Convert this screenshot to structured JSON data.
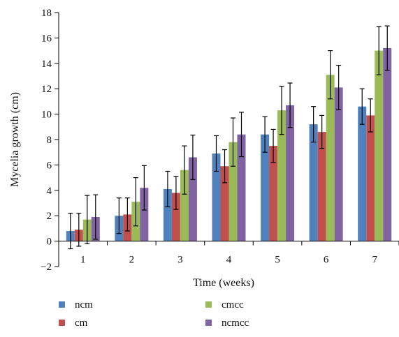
{
  "chart_data": {
    "type": "bar",
    "xlabel": "Time (weeks)",
    "ylabel": "Mycelia growth (cm)",
    "categories": [
      "1",
      "2",
      "3",
      "4",
      "5",
      "6",
      "7"
    ],
    "ylim": [
      -2,
      18
    ],
    "yticks": [
      -2,
      0,
      2,
      4,
      6,
      8,
      10,
      12,
      14,
      16,
      18
    ],
    "grid": false,
    "legend_position": "bottom",
    "series": [
      {
        "name": "ncm",
        "color": "#4f81bd",
        "values": [
          0.8,
          2.0,
          4.1,
          6.9,
          8.4,
          9.2,
          10.6
        ],
        "errors": [
          1.4,
          1.4,
          1.4,
          1.4,
          1.4,
          1.4,
          1.4
        ]
      },
      {
        "name": "cm",
        "color": "#c0504d",
        "values": [
          0.9,
          2.1,
          3.8,
          5.9,
          7.5,
          8.6,
          9.9
        ],
        "errors": [
          1.3,
          1.3,
          1.3,
          1.3,
          1.3,
          1.3,
          1.3
        ]
      },
      {
        "name": "cmcc",
        "color": "#9bbb59",
        "values": [
          1.7,
          3.1,
          5.6,
          7.8,
          10.3,
          13.1,
          15.0
        ],
        "errors": [
          1.9,
          1.9,
          1.9,
          1.9,
          1.9,
          1.9,
          1.9
        ]
      },
      {
        "name": "ncmcc",
        "color": "#8064a2",
        "values": [
          1.9,
          4.2,
          6.6,
          8.4,
          10.7,
          12.1,
          15.2
        ],
        "errors": [
          1.75,
          1.75,
          1.75,
          1.75,
          1.75,
          1.75,
          1.75
        ]
      }
    ]
  }
}
